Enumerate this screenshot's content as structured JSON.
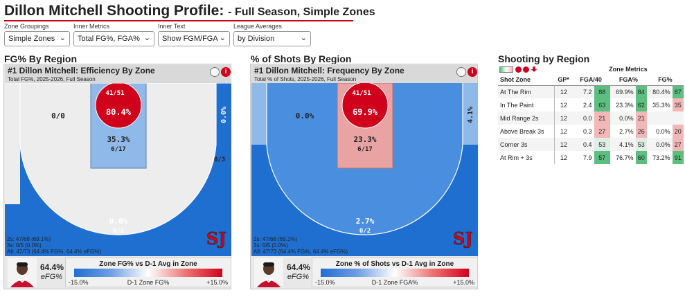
{
  "page": {
    "title": "Dillon Mitchell Shooting Profile:",
    "subtitle": "- Full Season, Simple Zones"
  },
  "controls": [
    {
      "label": "Zone Groupings",
      "value": "Simple Zones"
    },
    {
      "label": "Inner Metrics",
      "value": "Total FG%, FGA%"
    },
    {
      "label": "Inner Text",
      "value": "Show FGM/FGA"
    },
    {
      "label": "League Averages",
      "value": "by Division"
    }
  ],
  "sections": {
    "efficiency": "FG% By Region",
    "frequency": "% of Shots By Region",
    "table": "Shooting by Region"
  },
  "colors": {
    "accent_red": "#d0021b",
    "zone_blue": "#1f6fd1",
    "zone_mid_blue": "#4a8ee0",
    "zone_light_blue": "#8fb9e8",
    "zone_pale_red": "#e9a3a3",
    "rim_red": "#d0021b",
    "good_green": "#5cbf80",
    "bad_red": "#f2b8b8"
  },
  "panels": [
    {
      "title": "#1 Dillon Mitchell: Efficiency By Zone",
      "subtitle": "Total FG%, 2025-2026, Full Season",
      "zones": {
        "rim": {
          "metric": "80.4%",
          "made": "41/51"
        },
        "paint": {
          "metric": "35.3%",
          "made": "6/17"
        },
        "mid": {
          "metric": "0/0",
          "made": ""
        },
        "corner_right": {
          "metric": "0.0%",
          "made": "0/3"
        },
        "three": {
          "metric": "0.0%",
          "made": "0/2"
        }
      },
      "summary": [
        "2s: 47/68 (69.1%)",
        "3s: 0/5 (0.0%)",
        "All: 47/73 (64.4% FG%, 64.4% eFG%)"
      ],
      "efg_value": "64.4%",
      "efg_label": "eFG%",
      "legend_title": "Zone FG% vs D-1 Avg in Zone",
      "legend_left": "-15.0%",
      "legend_mid": "D-1 Zone FG%",
      "legend_right": "+15.0%"
    },
    {
      "title": "#1 Dillon Mitchell: Frequency By Zone",
      "subtitle": "Total % of Shots, 2025-2026, Full Season",
      "zones": {
        "rim": {
          "metric": "69.9%",
          "made": "41/51"
        },
        "paint": {
          "metric": "23.3%",
          "made": "6/17"
        },
        "mid": {
          "metric": "0.0%",
          "made": ""
        },
        "corner_right": {
          "metric": "4.1%",
          "made": ""
        },
        "three": {
          "metric": "2.7%",
          "made": "0/2"
        }
      },
      "summary": [
        "2s: 47/68 (69.1%)",
        "3s: 0/5 (0.0%)",
        "All: 47/73 (64.4% FG%, 64.4% eFG%)"
      ],
      "efg_value": "64.4%",
      "efg_label": "eFG%",
      "legend_title": "Zone % of Shots vs D-1 Avg in Zone",
      "legend_left": "-15.0%",
      "legend_mid": "D-1 Zone FGA%",
      "legend_right": "+15.0%"
    }
  ],
  "table": {
    "group_header": "Zone Metrics",
    "columns": [
      "Shot Zone",
      "GP*",
      "FGA/40",
      "FGA%",
      "FG%"
    ],
    "rows": [
      {
        "zone": "At The Rim",
        "gp": "12",
        "fga40": "7.2",
        "fga40_pct": "88",
        "fga_pct": "69.9%",
        "fga_pct_rank": "84",
        "fg_pct": "80.4%",
        "fg_pct_rank": "87"
      },
      {
        "zone": "In The Paint",
        "gp": "12",
        "fga40": "2.4",
        "fga40_pct": "63",
        "fga_pct": "23.3%",
        "fga_pct_rank": "62",
        "fg_pct": "35.3%",
        "fg_pct_rank": "35"
      },
      {
        "zone": "Mid Range 2s",
        "gp": "12",
        "fga40": "0.0",
        "fga40_pct": "21",
        "fga_pct": "0.0%",
        "fga_pct_rank": "21",
        "fg_pct": "",
        "fg_pct_rank": ""
      },
      {
        "zone": "Above Break 3s",
        "gp": "12",
        "fga40": "0.3",
        "fga40_pct": "27",
        "fga_pct": "2.7%",
        "fga_pct_rank": "26",
        "fg_pct": "0.0%",
        "fg_pct_rank": "20"
      },
      {
        "zone": "Corner 3s",
        "gp": "12",
        "fga40": "0.4",
        "fga40_pct": "53",
        "fga_pct": "4.1%",
        "fga_pct_rank": "53",
        "fg_pct": "0.0%",
        "fg_pct_rank": "27"
      },
      {
        "zone": "At Rim + 3s",
        "gp": "12",
        "fga40": "7.9",
        "fga40_pct": "57",
        "fga_pct": "76.7%",
        "fga_pct_rank": "60",
        "fg_pct": "73.2%",
        "fg_pct_rank": "91"
      }
    ]
  }
}
